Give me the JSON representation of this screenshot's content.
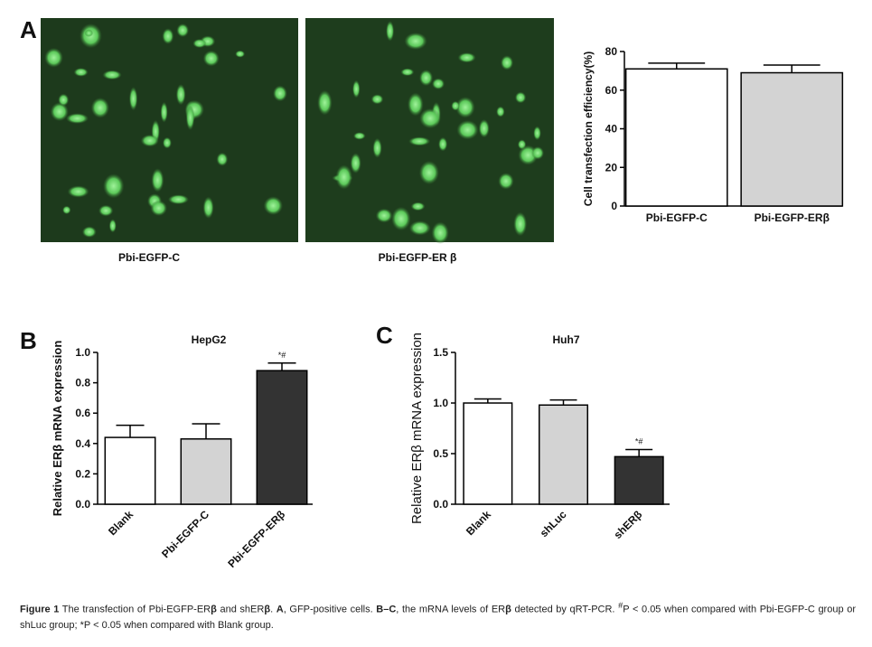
{
  "panel_labels": [
    "A",
    "B",
    "C"
  ],
  "image_captions": [
    "Pbi-EGFP-C",
    "Pbi-EGFP-ER β"
  ],
  "chart_data": [
    {
      "type": "bar",
      "ylabel": "Cell transfection efficiency(%)",
      "categories": [
        "Pbi-EGFP-C",
        "Pbi-EGFP-ERβ"
      ],
      "values": [
        71,
        69
      ],
      "errors": [
        3,
        4
      ],
      "colors": [
        "#ffffff",
        "#d3d3d3"
      ],
      "ylim": [
        0,
        80
      ],
      "yticks": [
        0,
        20,
        40,
        60,
        80
      ]
    },
    {
      "type": "bar",
      "title": "HepG2",
      "ylabel": "Relative ERβ mRNA expression",
      "categories": [
        "Blank",
        "Pbi-EGFP-C",
        "Pbi-EGFP-ERβ"
      ],
      "values": [
        0.44,
        0.43,
        0.88
      ],
      "errors": [
        0.08,
        0.1,
        0.05
      ],
      "colors": [
        "#ffffff",
        "#d3d3d3",
        "#333333"
      ],
      "ylim": [
        0,
        1.0
      ],
      "yticks": [
        {
          "value": 0,
          "label": "0.0"
        },
        0.2,
        0.4,
        0.6,
        0.8,
        {
          "value": 1,
          "label": "1.0"
        }
      ],
      "annotations": [
        {
          "text": "*#",
          "category": "Pbi-EGFP-ERβ"
        }
      ]
    },
    {
      "type": "bar",
      "title": "Huh7",
      "ylabel": "Relative ERβ mRNA expression",
      "categories": [
        "Blank",
        "shLuc",
        "shERβ"
      ],
      "values": [
        1.0,
        0.98,
        0.47
      ],
      "errors": [
        0.04,
        0.05,
        0.07
      ],
      "colors": [
        "#ffffff",
        "#d3d3d3",
        "#333333"
      ],
      "ylim": [
        0,
        1.5
      ],
      "yticks": [
        {
          "value": 0,
          "label": "0.0"
        },
        0.5,
        {
          "value": 1,
          "label": "1.0"
        },
        1.5
      ],
      "annotations": [
        {
          "text": "*#",
          "category": "shERβ"
        }
      ]
    }
  ],
  "caption": [
    {
      "text": "Figure 1",
      "style": "bold"
    },
    {
      "text": " The transfection of Pbi-EGFP-ER"
    },
    {
      "text": "β",
      "style": "bold"
    },
    {
      "text": " and shER"
    },
    {
      "text": "β",
      "style": "bold"
    },
    {
      "text": ". "
    },
    {
      "text": "A",
      "style": "bold"
    },
    {
      "text": ", GFP-positive cells. "
    },
    {
      "text": "B–C",
      "style": "bold"
    },
    {
      "text": ", the mRNA levels of ER"
    },
    {
      "text": "β",
      "style": "bold"
    },
    {
      "text": " detected by qRT-PCR. "
    },
    {
      "text": "#",
      "style": "sup"
    },
    {
      "text": "P < 0.05 when compared with Pbi-EGFP-C group or shLuc group; *P < 0.05 when compared with Blank group."
    }
  ]
}
